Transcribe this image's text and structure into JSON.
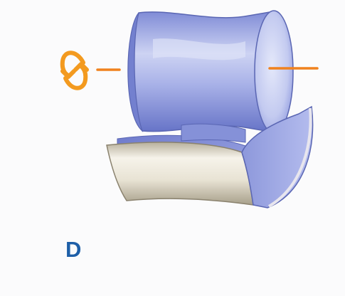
{
  "figure": {
    "panel_label": "D",
    "colors": {
      "label": "#1e5fa8",
      "rotation_icon": "#f39a1f",
      "axis_line": "#f0821e",
      "roller_light": "#c9d0f2",
      "roller_mid": "#8f9be0",
      "roller_dark": "#6572c6",
      "roller_outline": "#5a66b3",
      "cradle_outer_light": "#f4f0e4",
      "cradle_outer_dark": "#b9b2a0",
      "cradle_inner": "#8e99dc"
    },
    "icons": {
      "rotation": "rotation-arrows-icon"
    }
  }
}
